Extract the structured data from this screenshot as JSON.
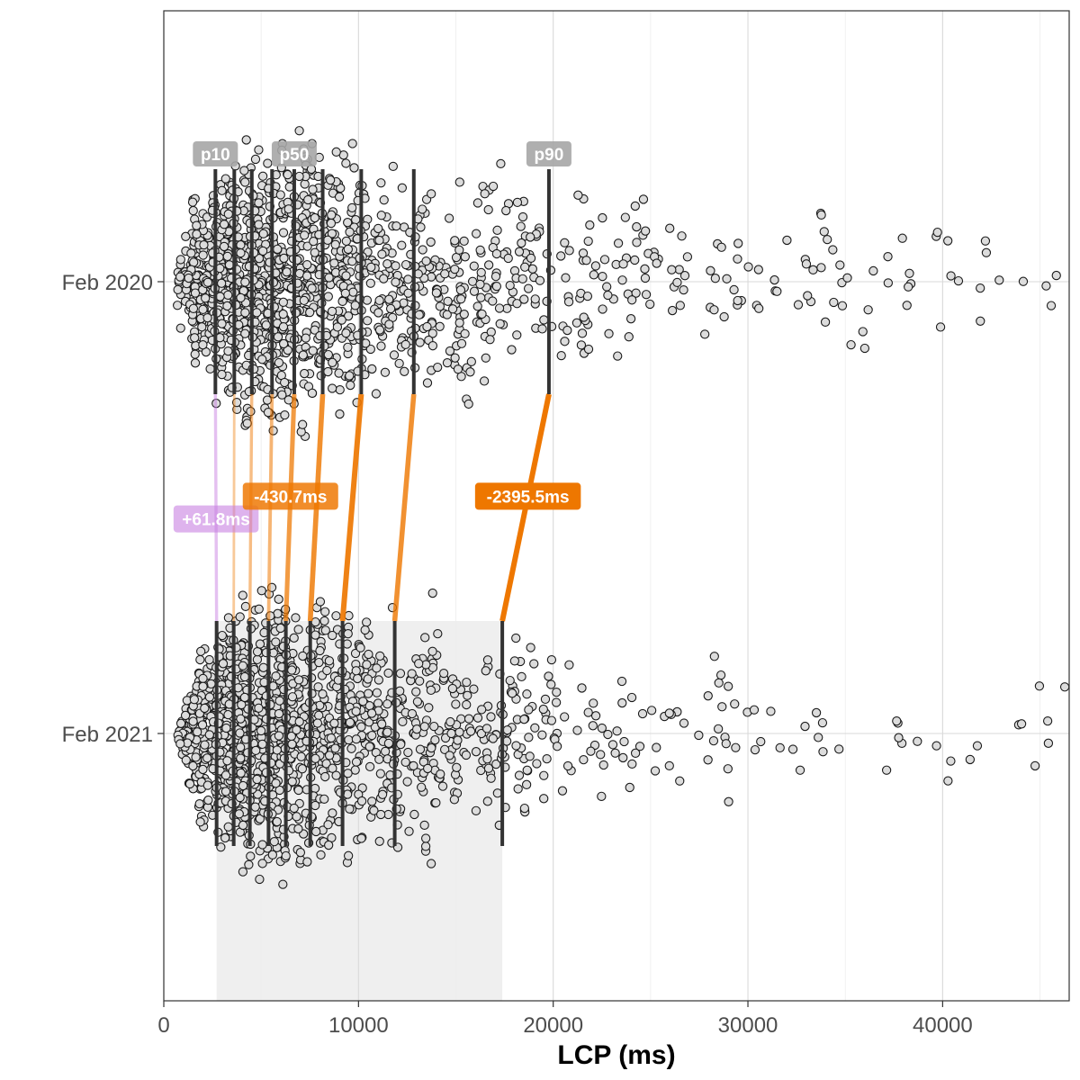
{
  "chart_data": {
    "type": "beeswarm",
    "title": "",
    "xlabel": "LCP (ms)",
    "ylabel": "",
    "xlim": [
      0,
      46500
    ],
    "x_ticks": [
      0,
      10000,
      20000,
      30000,
      40000
    ],
    "x_tick_labels": [
      "0",
      "10000",
      "20000",
      "30000",
      "40000"
    ],
    "categories": [
      "Feb 2020",
      "Feb 2021"
    ],
    "grid": true,
    "colors": {
      "point_fill": "#dcdcdc",
      "point_stroke": "#1a1a1a",
      "quantile_line": "#333333",
      "improvement": "#ee7700",
      "regression": "#c77ee0",
      "tag_grey": "#a6a6a6",
      "highlight_band": "#efefef"
    },
    "series": [
      {
        "name": "Feb 2020",
        "quantiles": {
          "p10": 2650,
          "p20": 3620,
          "p30": 4520,
          "p40": 5560,
          "p50": 6700,
          "p60": 8160,
          "p70": 10140,
          "p80": 12840,
          "p90": 19780
        },
        "range": [
          700,
          46000
        ]
      },
      {
        "name": "Feb 2021",
        "quantiles": {
          "p10": 2712,
          "p20": 3590,
          "p30": 4420,
          "p40": 5380,
          "p50": 6269,
          "p60": 7520,
          "p70": 9180,
          "p80": 11860,
          "p90": 17385
        },
        "range": [
          700,
          46500
        ]
      }
    ],
    "quantile_tags": [
      "p10",
      "p50",
      "p90"
    ],
    "annotations": [
      {
        "quantile": "p10",
        "label": "+61.8ms",
        "delta": 61.8
      },
      {
        "quantile": "p50",
        "label": "-430.7ms",
        "delta": -430.7
      },
      {
        "quantile": "p90",
        "label": "-2395.5ms",
        "delta": -2395.5
      }
    ],
    "highlight_band": {
      "series": "Feb 2021",
      "from": "p10",
      "to": "p90"
    }
  }
}
